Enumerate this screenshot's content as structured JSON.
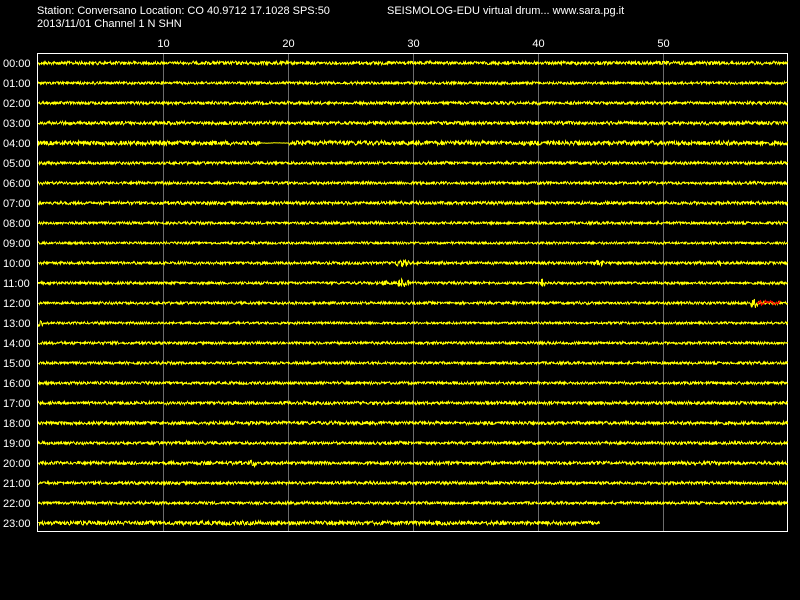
{
  "header": {
    "station_line": "Station: Conversano Location: CO 40.9712 17.1028 SPS:50",
    "app_title": "SEISMOLOG-EDU virtual drum... www.sara.pg.it",
    "date_channel": "2013/11/01  Channel 1 N SHN"
  },
  "colors": {
    "background": "#000000",
    "frame": "#ffffff",
    "trace": "#ffff00",
    "event": "#ff0000",
    "text": "#ffffff"
  },
  "chart_data": {
    "type": "line",
    "title": "",
    "xlabel": "",
    "ylabel": "",
    "x_unit": "minutes",
    "xlim": [
      0,
      60
    ],
    "x_ticks": [
      10,
      20,
      30,
      40,
      50
    ],
    "x_tick_labels": [
      "10",
      "20",
      "30",
      "40",
      "50"
    ],
    "grid": true,
    "rows": [
      "00:00",
      "01:00",
      "02:00",
      "03:00",
      "04:00",
      "05:00",
      "06:00",
      "07:00",
      "08:00",
      "09:00",
      "10:00",
      "11:00",
      "12:00",
      "13:00",
      "14:00",
      "15:00",
      "16:00",
      "17:00",
      "18:00",
      "19:00",
      "20:00",
      "21:00",
      "22:00",
      "23:00"
    ],
    "row_end_minute": [
      60,
      60,
      60,
      60,
      60,
      60,
      60,
      60,
      60,
      60,
      60,
      60,
      60,
      60,
      60,
      60,
      60,
      60,
      60,
      60,
      60,
      60,
      60,
      45
    ],
    "noise_amplitude": [
      1.6,
      1.2,
      1.4,
      1.6,
      2.2,
      1.3,
      1.3,
      1.5,
      1.2,
      1.0,
      1.3,
      1.2,
      1.2,
      1.0,
      1.2,
      1.2,
      1.3,
      1.5,
      1.6,
      1.4,
      1.6,
      1.4,
      1.3,
      2.0
    ],
    "events": [
      {
        "row": 4,
        "start": 17.9,
        "end": 20.1,
        "flat": true
      },
      {
        "row": 10,
        "start": 28.5,
        "end": 29.7,
        "amp": 3.5
      },
      {
        "row": 10,
        "start": 44.5,
        "end": 45.3,
        "amp": 3
      },
      {
        "row": 10,
        "start": 54.3,
        "end": 54.7,
        "amp": 2.5
      },
      {
        "row": 11,
        "start": 27.6,
        "end": 28.0,
        "amp": 2.5
      },
      {
        "row": 11,
        "start": 28.8,
        "end": 29.7,
        "amp": 4
      },
      {
        "row": 11,
        "start": 34.8,
        "end": 35.2,
        "amp": 2
      },
      {
        "row": 11,
        "start": 40.2,
        "end": 40.6,
        "amp": 4
      },
      {
        "row": 12,
        "start": 57.1,
        "end": 57.6,
        "amp": 5
      },
      {
        "row": 12,
        "start": 57.6,
        "end": 59.5,
        "amp": 2.5,
        "color": "event"
      },
      {
        "row": 13,
        "start": 0.0,
        "end": 0.4,
        "amp": 4
      },
      {
        "row": 19,
        "start": 11.8,
        "end": 12.2,
        "amp": 2
      },
      {
        "row": 20,
        "start": 17.0,
        "end": 17.5,
        "amp": 4
      }
    ]
  }
}
